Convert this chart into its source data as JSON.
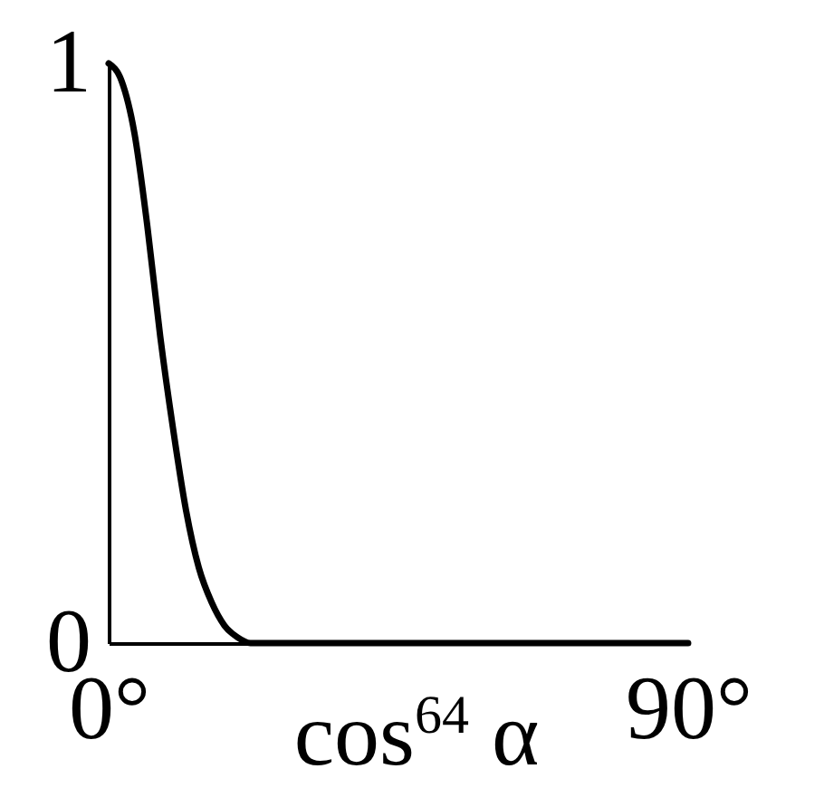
{
  "chart_data": {
    "type": "line",
    "xlabel": "cos$^{64}$ α",
    "x": [
      0,
      2,
      4,
      6,
      8,
      10,
      12,
      14,
      16,
      18,
      20,
      22,
      30,
      45,
      60,
      75,
      90
    ],
    "series": [
      {
        "color": "#000000",
        "values": [
          1,
          0.97,
          0.88,
          0.72,
          0.53,
          0.37,
          0.23,
          0.13,
          0.07,
          0.03,
          0.01,
          0,
          0,
          0,
          0,
          0,
          0
        ]
      }
    ],
    "xlim": [
      0,
      90
    ],
    "ylim": [
      0,
      1
    ],
    "xticks": [
      {
        "value": 0,
        "label": "0°"
      },
      {
        "value": 90,
        "label": "90°"
      }
    ],
    "yticks": [
      0,
      1
    ],
    "grid": false,
    "legend": false,
    "marker": "none",
    "line_style": "solid"
  }
}
